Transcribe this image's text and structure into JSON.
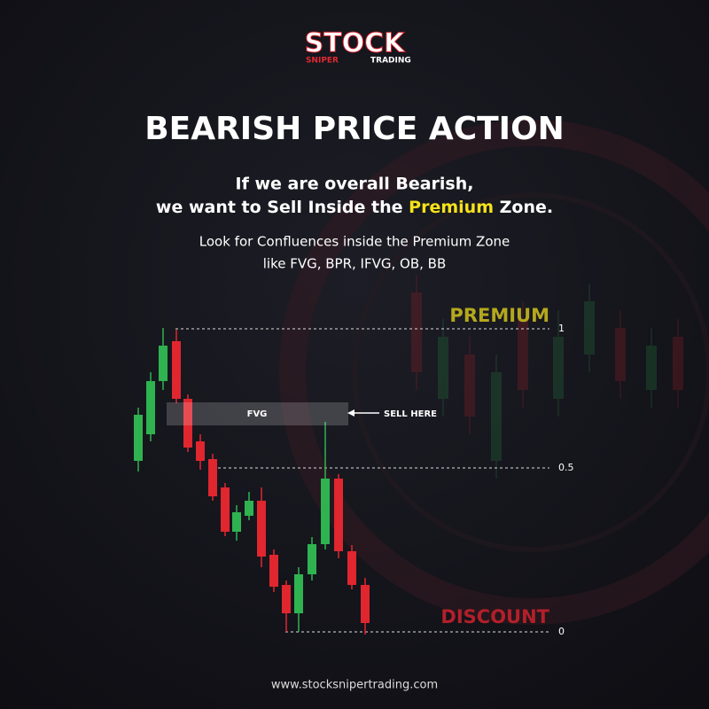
{
  "logo": {
    "name": "STOCK",
    "tagline_left": "SNIPER",
    "tagline_right": "TRADING"
  },
  "title": "BEARISH PRICE ACTION",
  "subtitle": {
    "line1": "If we are overall Bearish,",
    "line2_before": "we want to Sell Inside the",
    "line2_highlight": "Premium",
    "line2_after": "Zone."
  },
  "body": [
    "Look for Confluences inside the Premium Zone",
    "like FVG, BPR, IFVG, OB, BB"
  ],
  "chart": {
    "premium_label": "PREMIUM",
    "discount_label": "DISCOUNT",
    "levels": [
      "1",
      "0.5",
      "0"
    ],
    "fvg_label": "FVG",
    "annotation": "SELL HERE"
  },
  "footer": "www.stocksnipertrading.com"
}
